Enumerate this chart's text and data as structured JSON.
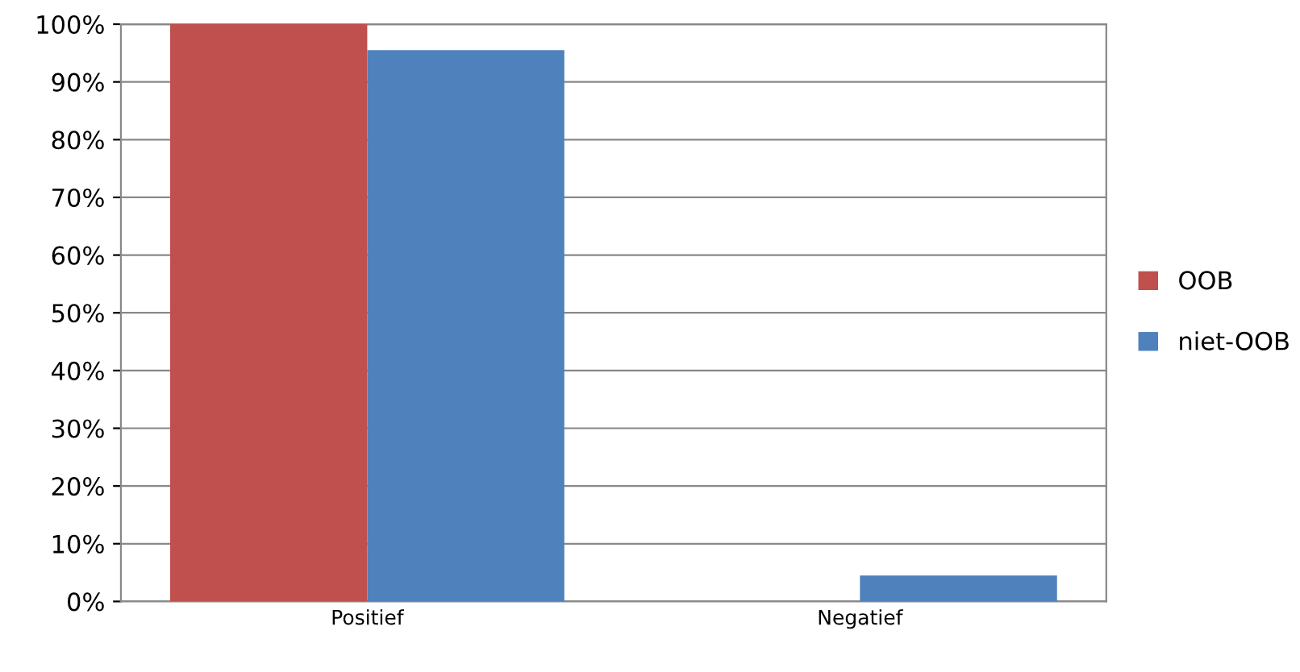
{
  "chart_data": {
    "type": "bar",
    "categories": [
      "Positief",
      "Negatief"
    ],
    "series": [
      {
        "name": "OOB",
        "color": "#c0504d",
        "values": [
          100,
          0
        ]
      },
      {
        "name": "niet-OOB",
        "color": "#4f81bd",
        "values": [
          95.5,
          4.5
        ]
      }
    ],
    "ylim": [
      0,
      100
    ],
    "yticks": [
      {
        "value": 0,
        "label": "0%"
      },
      {
        "value": 10,
        "label": "10%"
      },
      {
        "value": 20,
        "label": "20%"
      },
      {
        "value": 30,
        "label": "30%"
      },
      {
        "value": 40,
        "label": "40%"
      },
      {
        "value": 50,
        "label": "50%"
      },
      {
        "value": 60,
        "label": "60%"
      },
      {
        "value": 70,
        "label": "70%"
      },
      {
        "value": 80,
        "label": "80%"
      },
      {
        "value": 90,
        "label": "90%"
      },
      {
        "value": 100,
        "label": "100%"
      }
    ],
    "grid": "y",
    "legend": "right"
  }
}
